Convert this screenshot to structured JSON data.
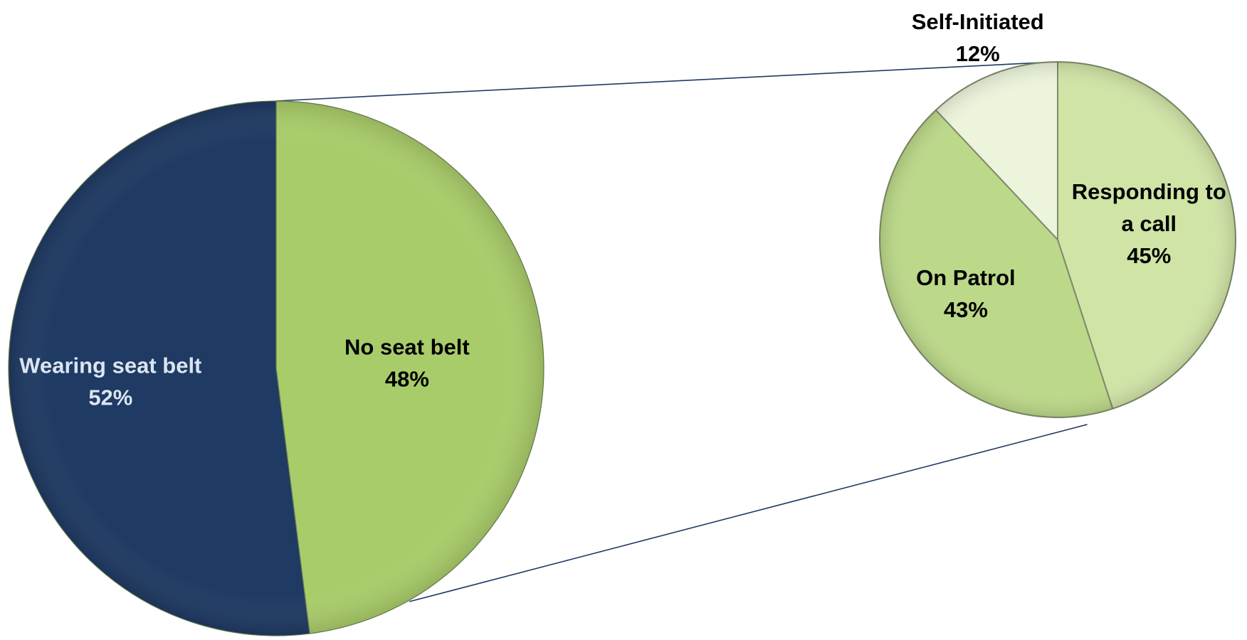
{
  "chart_data": {
    "type": "pie",
    "variant": "pie-of-pie",
    "title": "",
    "main_pie": {
      "slices": [
        {
          "label": "Wearing seat belt",
          "value": 52,
          "value_label": "52%",
          "color": "#1f3a63",
          "label_color": "#dbe5f1"
        },
        {
          "label": "No seat belt",
          "value": 48,
          "value_label": "48%",
          "color": "#a9cc6a",
          "label_color": "#000000"
        }
      ],
      "start_angle_deg": 0
    },
    "sub_pie": {
      "breakdown_of": "No seat belt",
      "slices": [
        {
          "label": "Responding to a call",
          "label_lines": [
            "Responding to",
            "a call"
          ],
          "value": 45,
          "value_label": "45%",
          "color": "#d0e4a6",
          "label_color": "#000000"
        },
        {
          "label": "On Patrol",
          "label_lines": [
            "On Patrol"
          ],
          "value": 43,
          "value_label": "43%",
          "color": "#bcd889",
          "label_color": "#000000"
        },
        {
          "label": "Self-Initiated",
          "label_lines": [
            "Self-Initiated"
          ],
          "value": 12,
          "value_label": "12%",
          "color": "#ecf4dc",
          "label_color": "#000000"
        }
      ],
      "start_angle_deg": 0
    },
    "connector_color": "#1f3a63",
    "legend": "none",
    "grid": false
  }
}
